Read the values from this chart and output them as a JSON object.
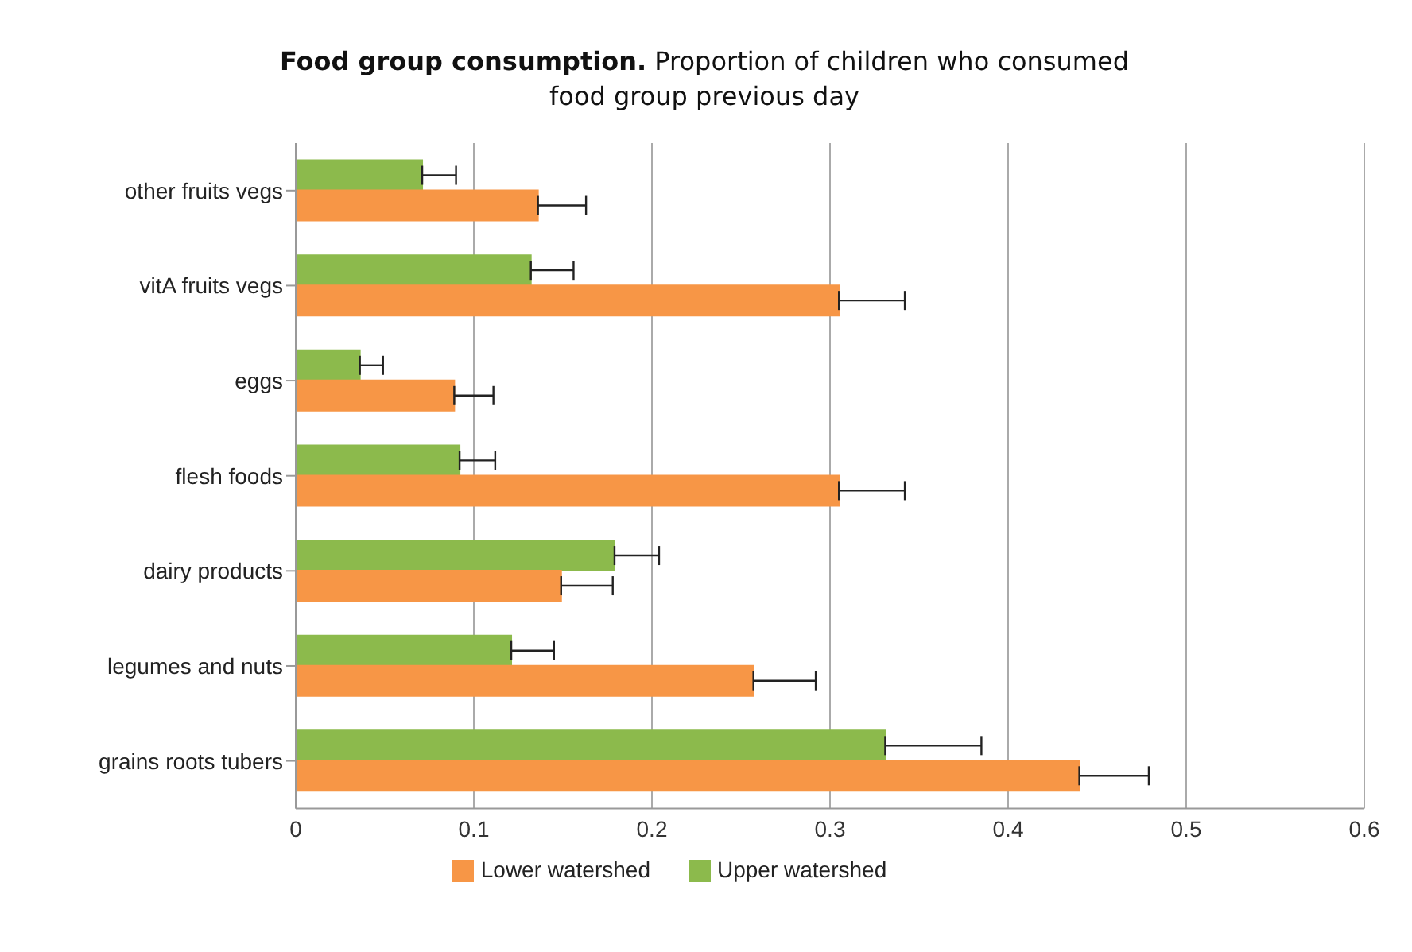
{
  "chart_data": {
    "type": "bar",
    "orientation": "horizontal",
    "title": "Food group consumption.",
    "subtitle": "Proportion of children who consumed food group previous day",
    "categories": [
      "other fruits vegs",
      "vitA fruits vegs",
      "eggs",
      "flesh foods",
      "dairy products",
      "legumes and nuts",
      "grains roots tubers"
    ],
    "series": [
      {
        "name": "Upper watershed",
        "color": "#8cba4c",
        "values": [
          0.071,
          0.132,
          0.036,
          0.092,
          0.179,
          0.121,
          0.331
        ],
        "errors": [
          [
            0.071,
            0.09
          ],
          [
            0.132,
            0.156
          ],
          [
            0.036,
            0.049
          ],
          [
            0.092,
            0.112
          ],
          [
            0.179,
            0.204
          ],
          [
            0.121,
            0.145
          ],
          [
            0.331,
            0.385
          ]
        ]
      },
      {
        "name": "Lower watershed",
        "color": "#f79646",
        "values": [
          0.136,
          0.305,
          0.089,
          0.305,
          0.149,
          0.257,
          0.44
        ],
        "errors": [
          [
            0.136,
            0.163
          ],
          [
            0.305,
            0.342
          ],
          [
            0.089,
            0.111
          ],
          [
            0.305,
            0.342
          ],
          [
            0.149,
            0.178
          ],
          [
            0.257,
            0.292
          ],
          [
            0.44,
            0.479
          ]
        ]
      }
    ],
    "xlim": [
      0,
      0.6
    ],
    "xticks": [
      0,
      0.1,
      0.2,
      0.3,
      0.4,
      0.5,
      0.6
    ],
    "grid": "x",
    "legend": "bottom"
  }
}
